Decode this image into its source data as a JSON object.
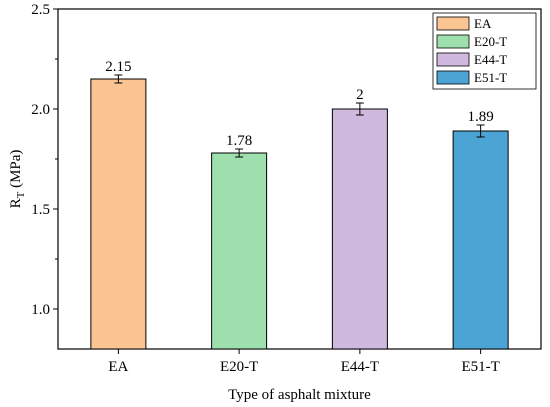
{
  "chart_data": {
    "type": "bar",
    "title": "",
    "xlabel": "Type of asphalt mixture",
    "ylabel_main": "R",
    "ylabel_sub": "T",
    "ylabel_unit": " (MPa)",
    "ylim": [
      0.8,
      2.5
    ],
    "yticks": [
      1.0,
      1.5,
      2.0,
      2.5
    ],
    "ytick_labels": [
      "1.0",
      "1.5",
      "2.0",
      "2.5"
    ],
    "grid": false,
    "legend_position": "top-right",
    "categories": [
      "EA",
      "E20-T",
      "E44-T",
      "E51-T"
    ],
    "values": [
      2.15,
      1.78,
      2.0,
      1.89
    ],
    "value_labels": [
      "2.15",
      "1.78",
      "2",
      "1.89"
    ],
    "errors": [
      0.02,
      0.02,
      0.03,
      0.03
    ],
    "colors": [
      "#FAC493",
      "#9EDFAE",
      "#D0B9DE",
      "#4BA4D4"
    ],
    "legend": [
      {
        "label": "EA",
        "color": "#FAC493"
      },
      {
        "label": "E20-T",
        "color": "#9EDFAE"
      },
      {
        "label": "E44-T",
        "color": "#D0B9DE"
      },
      {
        "label": "E51-T",
        "color": "#4BA4D4"
      }
    ]
  }
}
